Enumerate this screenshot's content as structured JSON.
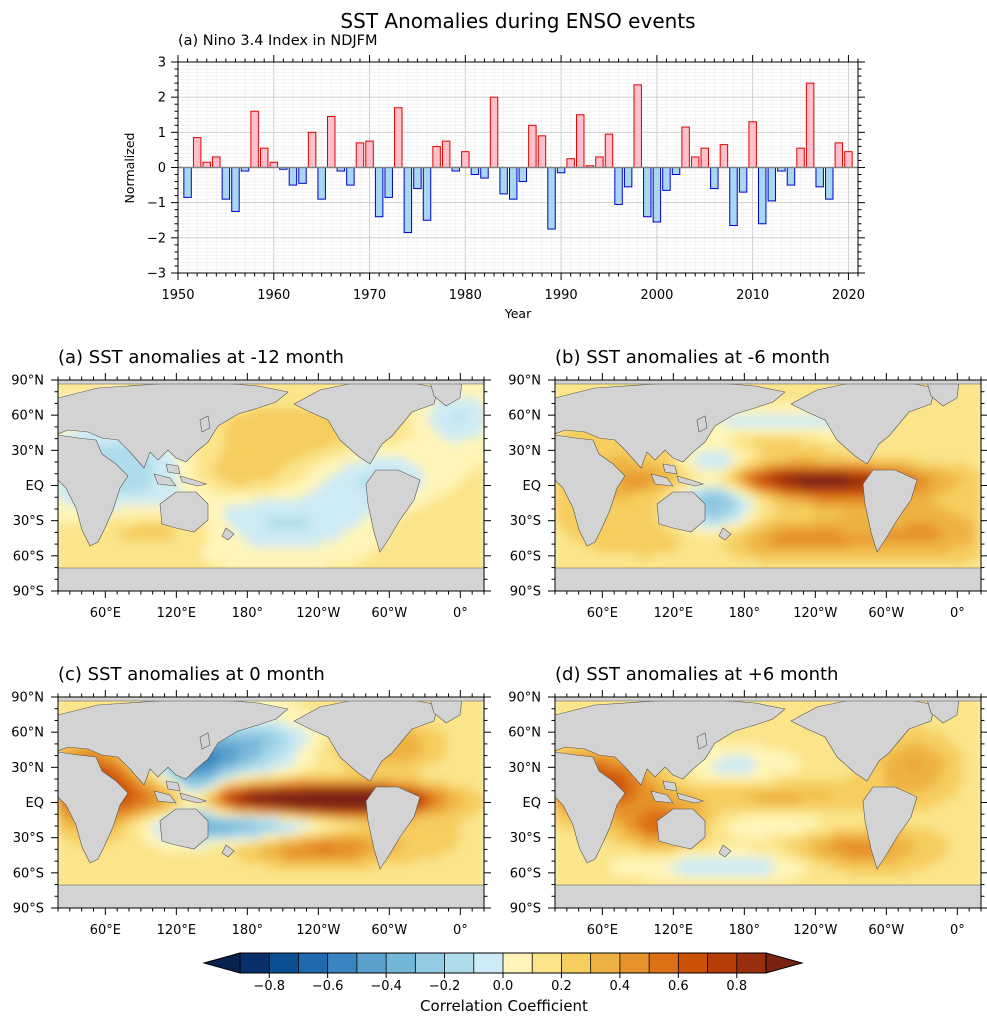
{
  "figure_title": "SST Anomalies during ENSO events",
  "chart_data": [
    {
      "type": "bar",
      "title": "(a) Nino 3.4 Index in NDJFM",
      "xlabel": "Year",
      "ylabel": "Normalized",
      "xlim": [
        1950,
        2021
      ],
      "ylim": [
        -3,
        3
      ],
      "xticks": [
        "1950",
        "1960",
        "1970",
        "1980",
        "1990",
        "2000",
        "2010",
        "2020"
      ],
      "yticks": [
        "3",
        "2",
        "1",
        "0",
        "−1",
        "−2",
        "−3"
      ],
      "grid": true,
      "years": [
        1951,
        1952,
        1953,
        1954,
        1955,
        1956,
        1957,
        1958,
        1959,
        1960,
        1961,
        1962,
        1963,
        1964,
        1965,
        1966,
        1967,
        1968,
        1969,
        1970,
        1971,
        1972,
        1973,
        1974,
        1975,
        1976,
        1977,
        1978,
        1979,
        1980,
        1981,
        1982,
        1983,
        1984,
        1985,
        1986,
        1987,
        1988,
        1989,
        1990,
        1991,
        1992,
        1993,
        1994,
        1995,
        1996,
        1997,
        1998,
        1999,
        2000,
        2001,
        2002,
        2003,
        2004,
        2005,
        2006,
        2007,
        2008,
        2009,
        2010,
        2011,
        2012,
        2013,
        2014,
        2015,
        2016,
        2017,
        2018,
        2019,
        2020
      ],
      "values": [
        -0.85,
        0.85,
        0.15,
        0.3,
        -0.9,
        -1.25,
        -0.1,
        1.6,
        0.55,
        0.15,
        -0.05,
        -0.5,
        -0.45,
        1.0,
        -0.9,
        1.45,
        -0.1,
        -0.5,
        0.7,
        0.75,
        -1.4,
        -0.85,
        1.7,
        -1.85,
        -0.6,
        -1.5,
        0.6,
        0.75,
        -0.1,
        0.45,
        -0.2,
        -0.3,
        2.0,
        -0.75,
        -0.9,
        -0.4,
        1.2,
        0.9,
        -1.75,
        -0.15,
        0.25,
        1.5,
        0.05,
        0.3,
        0.95,
        -1.05,
        -0.55,
        2.35,
        -1.4,
        -1.55,
        -0.65,
        -0.2,
        1.15,
        0.3,
        0.55,
        -0.6,
        0.65,
        -1.65,
        -0.7,
        1.3,
        -1.6,
        -0.95,
        -0.1,
        -0.5,
        0.55,
        2.4,
        -0.55,
        -0.9,
        0.7,
        0.45
      ],
      "positive_fill": "#ffc0cb",
      "positive_edge": "#e00000",
      "negative_fill": "#a8d8f0",
      "negative_edge": "#0000d0"
    },
    {
      "type": "heatmap",
      "panels": [
        {
          "title": "(a) SST anomalies at -12 month"
        },
        {
          "title": "(b) SST anomalies at -6 month"
        },
        {
          "title": "(c) SST anomalies at 0 month"
        },
        {
          "title": "(d) SST anomalies at +6 month"
        }
      ],
      "lat_ticks": [
        "90°N",
        "60°N",
        "30°N",
        "EQ",
        "30°S",
        "60°S",
        "90°S"
      ],
      "lon_ticks": [
        "60°E",
        "120°E",
        "180°",
        "120°W",
        "60°W",
        "0°"
      ],
      "land_color": "#d3d3d3",
      "colorbar": {
        "label": "Correlation Coefficient",
        "ticks": [
          "−0.8",
          "−0.6",
          "−0.4",
          "−0.2",
          "0.0",
          "0.2",
          "0.4",
          "0.6",
          "0.8"
        ],
        "range": [
          -0.9,
          0.9
        ],
        "colors": [
          "#08306b",
          "#0b4f93",
          "#1f6aad",
          "#3a85c0",
          "#5aa0cc",
          "#74b6d8",
          "#93cbe2",
          "#aedcea",
          "#cdebf4",
          "#fff5b8",
          "#fbe48a",
          "#f6cd5f",
          "#eeb242",
          "#e6922a",
          "#dd7016",
          "#cc5108",
          "#b63d07",
          "#992f0c"
        ],
        "under_color": "#08224d",
        "over_color": "#7a2312"
      }
    }
  ]
}
